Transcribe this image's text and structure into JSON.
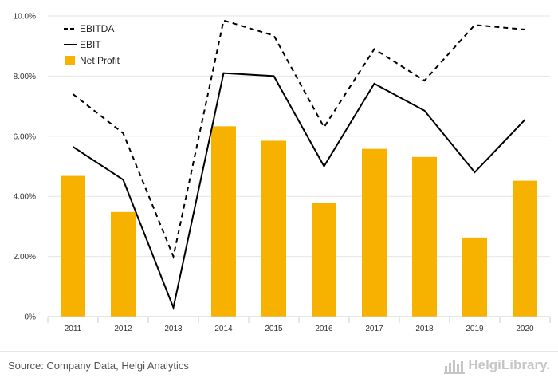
{
  "chart_data": {
    "type": "bar",
    "categories": [
      "2011",
      "2012",
      "2013",
      "2014",
      "2015",
      "2016",
      "2017",
      "2018",
      "2019",
      "2020"
    ],
    "series": [
      {
        "name": "EBITDA",
        "type": "line",
        "style": "dashed",
        "color": "#000000",
        "values": [
          7.4,
          6.1,
          2.0,
          9.85,
          9.35,
          6.3,
          8.9,
          7.85,
          9.7,
          9.55
        ]
      },
      {
        "name": "EBIT",
        "type": "line",
        "style": "solid",
        "color": "#000000",
        "values": [
          5.65,
          4.55,
          0.3,
          8.1,
          8.0,
          5.0,
          7.75,
          6.85,
          4.8,
          6.55
        ]
      },
      {
        "name": "Net Profit",
        "type": "bar",
        "color": "#f7b200",
        "values": [
          4.68,
          3.48,
          0.0,
          6.33,
          5.85,
          3.77,
          5.58,
          5.31,
          2.63,
          4.52
        ]
      }
    ],
    "y_ticks": [
      "0%",
      "2.00%",
      "4.00%",
      "6.00%",
      "8.00%",
      "10.0%"
    ],
    "ylim": [
      0,
      10
    ],
    "grid": true,
    "legend_position": "top-left"
  },
  "footer": {
    "source": "Source: Company Data, Helgi Analytics",
    "logo_text": "HelgiLibrary."
  },
  "logo_icon": "bar-graph-icon"
}
